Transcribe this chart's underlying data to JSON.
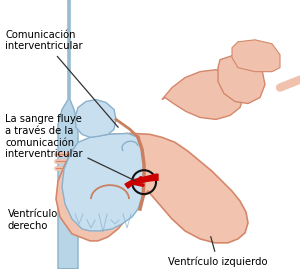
{
  "bg_color": "#ffffff",
  "heart_fill": "#f2c4b0",
  "heart_edge": "#d4876a",
  "rv_fill": "#c8dff0",
  "rv_edge": "#8ab0cc",
  "la_fill": "#f2c4b0",
  "la_edge": "#d4876a",
  "vessel_left_fill": "#b8d5e8",
  "vessel_left_edge": "#8ab0c8",
  "vessel_right_fill": "#f2c4b0",
  "vessel_right_edge": "#d4876a",
  "septum_edge": "#c88060",
  "arrow_color": "#cc0000",
  "circle_edge": "#111111",
  "line_color": "#333333",
  "text_color": "#000000",
  "label_comunicacion": "Comunicación\ninterventricular",
  "label_sangre": "La sangre fluye\na través de la\ncomunicación\ninterventricular",
  "label_derecho": "Ventrículo\nderecho",
  "label_izquierdo": "Ventrículo izquierdo",
  "fontsize": 7.2
}
